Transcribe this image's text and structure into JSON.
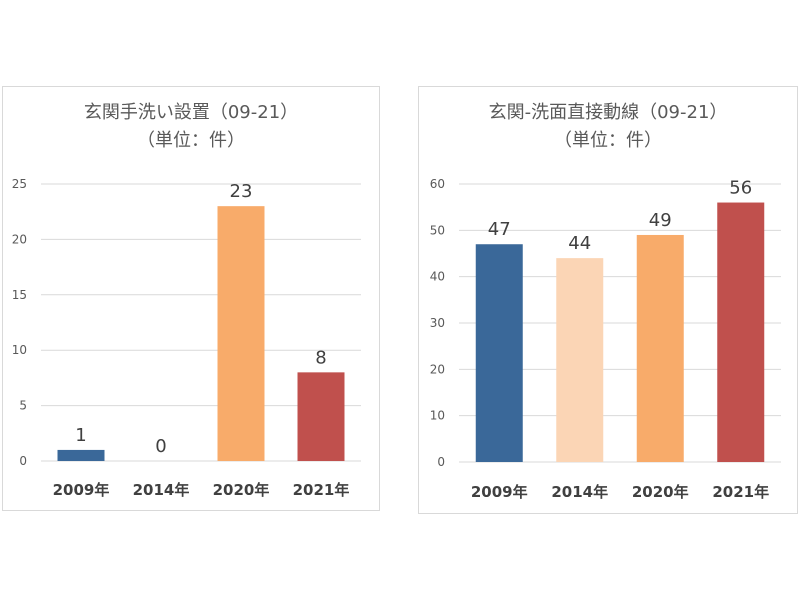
{
  "chart_data": [
    {
      "type": "bar",
      "title": "玄関手洗い設置（09-21）",
      "subtitle": "（単位：件）",
      "categories": [
        "2009年",
        "2014年",
        "2020年",
        "2021年"
      ],
      "values": [
        1,
        0,
        23,
        8
      ],
      "colors": [
        "#3A6899",
        "#FBD5B5",
        "#F8AB6A",
        "#C0504D"
      ],
      "ylim": [
        0,
        25
      ],
      "yticks": [
        0,
        5,
        10,
        15,
        20,
        25
      ],
      "grid": true,
      "data_labels": true
    },
    {
      "type": "bar",
      "title": "玄関-洗面直接動線（09-21）",
      "subtitle": "（単位：件）",
      "categories": [
        "2009年",
        "2014年",
        "2020年",
        "2021年"
      ],
      "values": [
        47,
        44,
        49,
        56
      ],
      "colors": [
        "#3A6899",
        "#FBD5B5",
        "#F8AB6A",
        "#C0504D"
      ],
      "ylim": [
        0,
        60
      ],
      "yticks": [
        0,
        10,
        20,
        30,
        40,
        50,
        60
      ],
      "grid": true,
      "data_labels": true
    }
  ]
}
